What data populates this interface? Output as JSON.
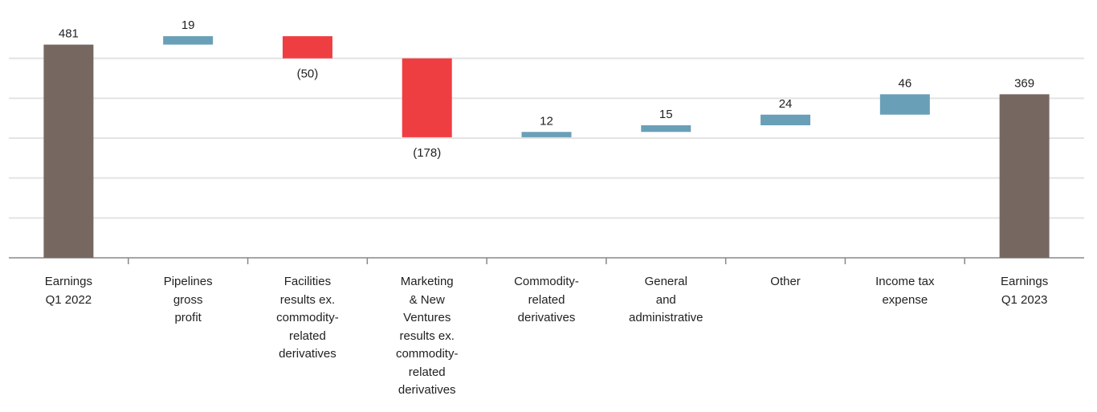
{
  "chart_data": {
    "type": "waterfall",
    "categories": [
      "Earnings\nQ1 2022",
      "Pipelines\ngross\nprofit",
      "Facilities\nresults ex.\ncommodity-\nrelated\nderivatives",
      "Marketing\n& New\nVentures\nresults ex.\ncommodity-\nrelated\nderivatives",
      "Commodity-\nrelated\nderivatives",
      "General\nand\nadministrative",
      "Other",
      "Income tax\nexpense",
      "Earnings\nQ1 2023"
    ],
    "values": [
      481,
      19,
      -50,
      -178,
      12,
      15,
      24,
      46,
      369
    ],
    "value_labels": [
      "481",
      "19",
      "(50)",
      "(178)",
      "12",
      "15",
      "24",
      "46",
      "369"
    ],
    "total": [
      true,
      false,
      false,
      false,
      false,
      false,
      false,
      false,
      true
    ],
    "colors": {
      "total": "#766861",
      "increase": "#6a9fb8",
      "decrease": "#ef3e42"
    },
    "ylim": [
      0,
      540
    ],
    "yticks": [
      0,
      90,
      180,
      270,
      360,
      450
    ],
    "grid": true
  }
}
